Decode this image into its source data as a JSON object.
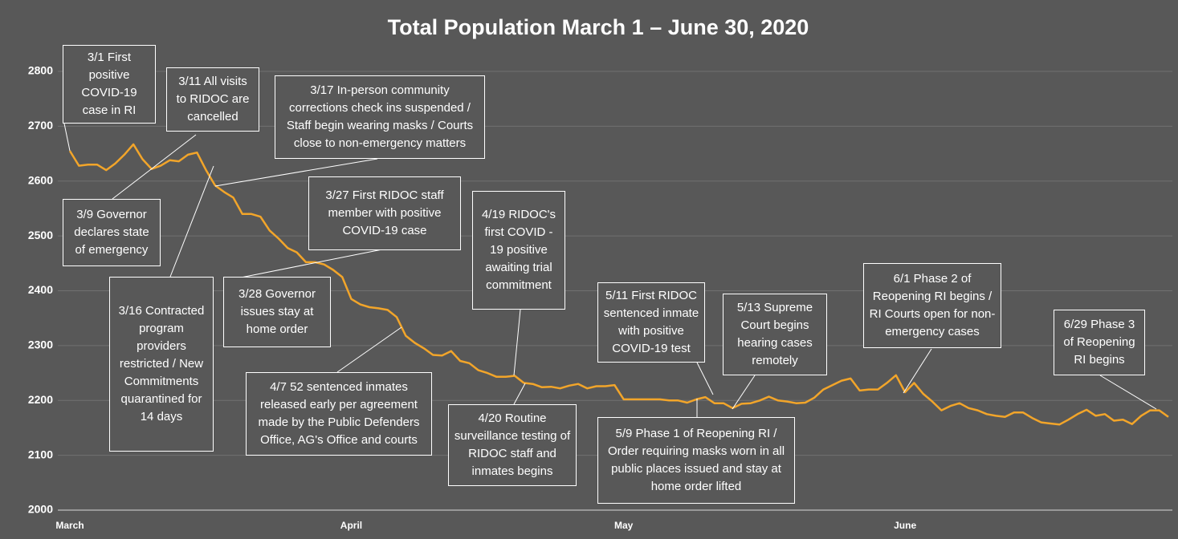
{
  "chart_data": {
    "type": "line",
    "title": "Total Population March 1 – June 30, 2020",
    "categories": [
      "March",
      null,
      null,
      null,
      null,
      null,
      null,
      null,
      null,
      null,
      null,
      null,
      null,
      null,
      null,
      null,
      null,
      null,
      null,
      null,
      null,
      null,
      null,
      null,
      null,
      null,
      null,
      null,
      null,
      null,
      null,
      "April",
      null,
      null,
      null,
      null,
      null,
      null,
      null,
      null,
      null,
      null,
      null,
      null,
      null,
      null,
      null,
      null,
      null,
      null,
      null,
      null,
      null,
      null,
      null,
      null,
      null,
      null,
      null,
      null,
      null,
      "May",
      null,
      null,
      null,
      null,
      null,
      null,
      null,
      null,
      null,
      null,
      null,
      null,
      null,
      null,
      null,
      null,
      null,
      null,
      null,
      null,
      null,
      null,
      null,
      null,
      null,
      null,
      null,
      null,
      null,
      null,
      "June",
      null,
      null,
      null,
      null,
      null,
      null,
      null,
      null,
      null,
      null,
      null,
      null,
      null,
      null,
      null,
      null,
      null,
      null,
      null,
      null,
      null,
      null,
      null,
      null,
      null,
      null,
      null,
      null,
      null
    ],
    "series": [
      {
        "name": "Total Population",
        "color": "#f2a52a",
        "values": [
          2655,
          2628,
          2630,
          2630,
          2620,
          2632,
          2648,
          2667,
          2640,
          2622,
          2628,
          2638,
          2636,
          2648,
          2652,
          2620,
          2592,
          2580,
          2570,
          2540,
          2540,
          2535,
          2510,
          2495,
          2478,
          2470,
          2452,
          2452,
          2448,
          2438,
          2425,
          2385,
          2375,
          2370,
          2368,
          2365,
          2352,
          2318,
          2305,
          2295,
          2283,
          2282,
          2290,
          2272,
          2268,
          2255,
          2250,
          2243,
          2243,
          2245,
          2232,
          2230,
          2224,
          2225,
          2222,
          2227,
          2230,
          2222,
          2226,
          2226,
          2228,
          2202,
          2202,
          2202,
          2202,
          2202,
          2200,
          2200,
          2196,
          2202,
          2206,
          2195,
          2195,
          2186,
          2194,
          2195,
          2200,
          2207,
          2200,
          2198,
          2195,
          2196,
          2205,
          2220,
          2228,
          2236,
          2240,
          2218,
          2220,
          2220,
          2232,
          2246,
          2215,
          2232,
          2212,
          2198,
          2182,
          2190,
          2195,
          2186,
          2182,
          2175,
          2172,
          2170,
          2178,
          2178,
          2168,
          2160,
          2158,
          2156,
          2165,
          2175,
          2183,
          2172,
          2175,
          2163,
          2165,
          2157,
          2172,
          2182,
          2182,
          2170
        ]
      }
    ],
    "ylim": [
      2000,
      2800
    ],
    "yticks": [
      2000,
      2100,
      2200,
      2300,
      2400,
      2500,
      2600,
      2700,
      2800
    ],
    "grid": true,
    "annotations": [
      "3/1 First positive COVID-19 case in RI",
      "3/11 All visits to RIDOC are cancelled",
      "3/17 In-person community corrections check ins suspended / Staff begin wearing masks / Courts close to non-emergency matters",
      "3/9 Governor declares state of emergency",
      "3/16 Contracted program providers restricted / New Commitments quarantined for 14 days",
      "3/27 First RIDOC staff member with positive COVID-19 case",
      "3/28 Governor issues stay at home order",
      "4/19 RIDOC's first COVID - 19 positive awaiting trial commitment",
      "4/7 52 sentenced inmates released early per agreement made by the Public Defenders Office, AG's Office and courts",
      "4/20 Routine surveillance testing of RIDOC staff and inmates begins",
      "5/11 First RIDOC sentenced inmate with positive COVID-19 test",
      "5/13 Supreme Court begins hearing cases remotely",
      "5/9 Phase 1 of Reopening RI / Order requiring masks worn in all public places issued and stay at home order lifted",
      "6/1 Phase 2 of Reopening RI begins / RI Courts open for non-emergency cases",
      "6/29 Phase 3 of Reopening RI begins"
    ]
  }
}
